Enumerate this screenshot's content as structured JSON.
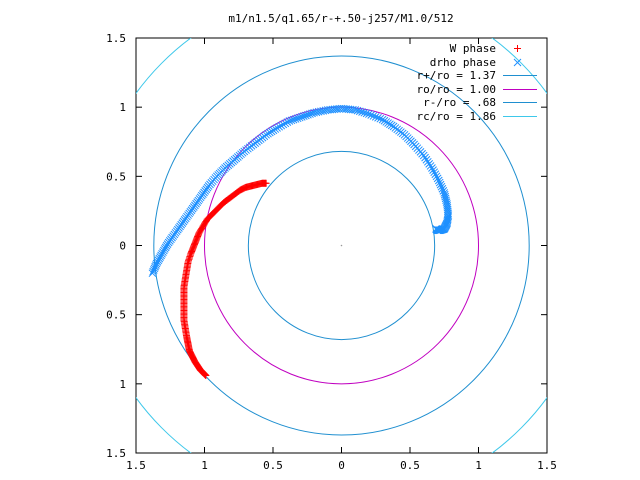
{
  "chart_data": {
    "type": "scatter",
    "title": "m1/n1.5/q1.65/r-+.50-j257/M1.0/512",
    "xlabel": "",
    "ylabel": "",
    "xlim": [
      -1.5,
      1.5
    ],
    "ylim": [
      -1.5,
      1.5
    ],
    "x_tick_values": [
      -1.5,
      -1,
      -0.5,
      0,
      0.5,
      1,
      1.5
    ],
    "x_tick_labels": [
      "1.5",
      "1",
      "0.5",
      "0",
      "0.5",
      "1",
      "1.5"
    ],
    "y_tick_values": [
      1.5,
      1,
      0.5,
      0,
      -0.5,
      -1,
      -1.5
    ],
    "y_tick_labels": [
      "1.5",
      "1",
      "0.5",
      "0",
      "0.5",
      "1",
      "1.5"
    ],
    "grid": false,
    "legend_position": "top-right",
    "series": [
      {
        "name": "W phase",
        "kind": "points",
        "marker": "plus",
        "color": "#ff0000",
        "x": [
          -0.55,
          -0.58,
          -0.62,
          -0.66,
          -0.7,
          -0.74,
          -0.78,
          -0.82,
          -0.86,
          -0.9,
          -0.94,
          -0.98,
          -1.01,
          -1.04,
          -1.06,
          -1.08,
          -1.1,
          -1.12,
          -1.13,
          -1.14,
          -1.15,
          -1.15,
          -1.15,
          -1.15,
          -1.15,
          -1.14,
          -1.13,
          -1.12,
          -1.11,
          -1.09,
          -1.07,
          -1.05,
          -1.03,
          -1.01,
          -0.99
        ],
        "y": [
          0.45,
          0.45,
          0.44,
          0.43,
          0.42,
          0.4,
          0.37,
          0.34,
          0.31,
          0.27,
          0.23,
          0.19,
          0.14,
          0.09,
          0.04,
          -0.01,
          -0.06,
          -0.12,
          -0.18,
          -0.24,
          -0.3,
          -0.36,
          -0.42,
          -0.48,
          -0.54,
          -0.6,
          -0.66,
          -0.71,
          -0.76,
          -0.8,
          -0.84,
          -0.87,
          -0.9,
          -0.92,
          -0.94
        ]
      },
      {
        "name": "drho phase",
        "kind": "points",
        "marker": "cross",
        "color": "#1e90ff",
        "x": [
          -1.38,
          -1.35,
          -1.31,
          -1.27,
          -1.22,
          -1.17,
          -1.12,
          -1.07,
          -1.02,
          -0.97,
          -0.91,
          -0.85,
          -0.78,
          -0.71,
          -0.63,
          -0.55,
          -0.47,
          -0.38,
          -0.29,
          -0.2,
          -0.1,
          0.0,
          0.1,
          0.2,
          0.3,
          0.38,
          0.46,
          0.53,
          0.6,
          0.66,
          0.71,
          0.75,
          0.77,
          0.78,
          0.77,
          0.75,
          0.72,
          0.7,
          0.69
        ],
        "y": [
          -0.2,
          -0.13,
          -0.06,
          0.01,
          0.08,
          0.15,
          0.22,
          0.29,
          0.36,
          0.43,
          0.5,
          0.56,
          0.62,
          0.68,
          0.74,
          0.8,
          0.85,
          0.9,
          0.93,
          0.96,
          0.98,
          0.99,
          0.98,
          0.95,
          0.91,
          0.86,
          0.8,
          0.73,
          0.65,
          0.56,
          0.47,
          0.38,
          0.3,
          0.22,
          0.16,
          0.12,
          0.11,
          0.11,
          0.12
        ]
      },
      {
        "name": "r+/ro = 1.37",
        "kind": "circle",
        "radius": 1.37,
        "color": "#1f8fd0"
      },
      {
        "name": "ro/ro = 1.00",
        "kind": "circle",
        "radius": 1.0,
        "color": "#c000c0"
      },
      {
        "name": "r-/ro = .68",
        "kind": "circle",
        "radius": 0.68,
        "color": "#1f8fd0"
      },
      {
        "name": "rc/ro = 1.86",
        "kind": "circle",
        "radius": 1.86,
        "color": "#3ec8ea"
      }
    ]
  }
}
